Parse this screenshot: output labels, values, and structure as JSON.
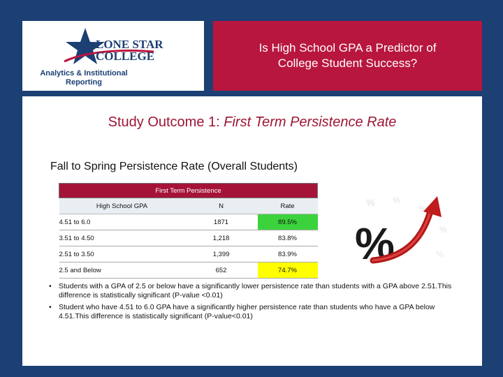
{
  "header": {
    "title_lines": [
      "Is High School GPA a Predictor of",
      "College Student Success?"
    ],
    "logo": {
      "name_line1": "LONE STAR",
      "name_line2": "COLLEGE",
      "dept_line1": "Analytics & Institutional",
      "dept_line2": "Reporting"
    }
  },
  "slide": {
    "title_prefix": "Study Outcome 1: ",
    "title_italic": "First Term Persistence Rate",
    "subheading": "Fall to Spring Persistence Rate (Overall Students)"
  },
  "table": {
    "band_title": "First Term Persistence",
    "columns": [
      "High School GPA",
      "N",
      "Rate"
    ],
    "rows": [
      {
        "gpa": "4.51 to 6.0",
        "n": "1871",
        "rate": "89.5%",
        "highlight": "green"
      },
      {
        "gpa": "3.51 to 4.50",
        "n": "1,218",
        "rate": "83.8%",
        "highlight": "none"
      },
      {
        "gpa": "2.51 to 3.50",
        "n": "1,399",
        "rate": "83.9%",
        "highlight": "none"
      },
      {
        "gpa": "2.5 and Below",
        "n": "652",
        "rate": "74.7%",
        "highlight": "yellow"
      }
    ]
  },
  "bullets": [
    "Students with a GPA of 2.5 or below have a significantly lower persistence rate than students with a GPA above 2.51.This difference is statistically significant (P-value <0.01)",
    "Student who have 4.51 to 6.0 GPA have a significantly higher persistence rate than students who have a GPA below 4.51.This difference is statistically significant (P-value<0.01)"
  ],
  "colors": {
    "background": "#1c3f74",
    "title_red": "#b8163f",
    "highlight_green": "#3cd23c",
    "highlight_yellow": "#ffff00"
  },
  "icons": [
    "lone-star-logo-icon",
    "percent-growth-arrow-icon",
    "bullet-icon"
  ]
}
